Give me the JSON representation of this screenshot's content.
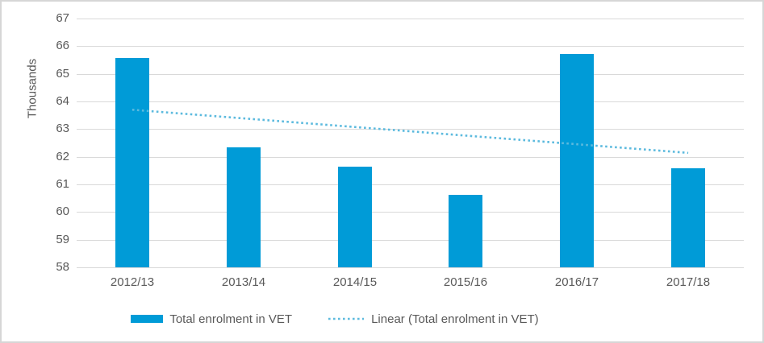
{
  "chart_data": {
    "type": "bar",
    "title": "",
    "categories": [
      "2012/13",
      "2013/14",
      "2014/15",
      "2015/16",
      "2016/17",
      "2017/18"
    ],
    "series": [
      {
        "name": "Total enrolment in VET",
        "type": "bar",
        "color": "#009bd7",
        "values": [
          65.57,
          62.35,
          61.64,
          60.62,
          65.73,
          61.58
        ]
      },
      {
        "name": "Linear (Total enrolment in VET)",
        "type": "linear-trendline",
        "color": "#5cbade",
        "line_style": "dotted",
        "endpoints": [
          63.7,
          62.14
        ]
      }
    ],
    "xlabel": "",
    "ylabel": "Thousands",
    "ylim": [
      58,
      67
    ],
    "yticks": [
      58,
      59,
      60,
      61,
      62,
      63,
      64,
      65,
      66,
      67
    ],
    "grid": true,
    "legend_position": "bottom"
  },
  "frame": {
    "background_color": "#ffffff",
    "border_color": "#d6d6d6",
    "gridline_color": "#d9d9d9",
    "text_color": "#595959"
  }
}
